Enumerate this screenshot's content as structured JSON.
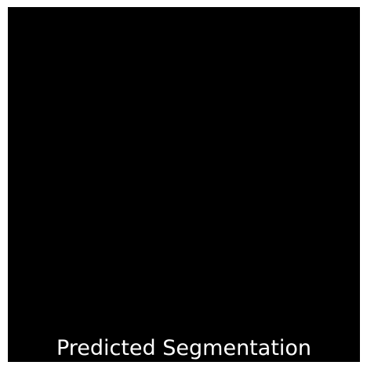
{
  "figure": {
    "caption": "Predicted Segmentation",
    "background_color": "#ffffff",
    "mask_color": "#000000",
    "caption_color": "#ffffff"
  }
}
